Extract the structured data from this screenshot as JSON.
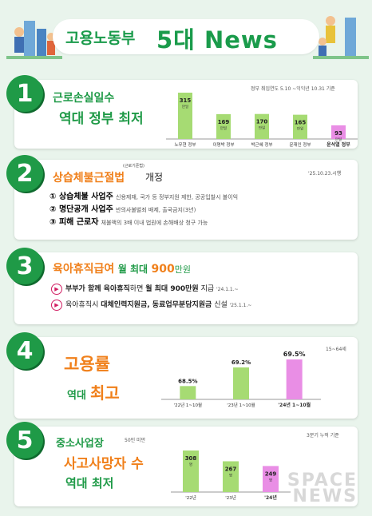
{
  "header": {
    "title_prefix": "고용노동부",
    "title_main": "5대 News"
  },
  "items": [
    {
      "num": "1",
      "title": "근로손실일수",
      "subtitle": "역대 정부 최저",
      "note": "정부 취임연도 5.10 ~익익년 10.31 기준",
      "chart_data": {
        "type": "bar",
        "categories": [
          "노무현 정부",
          "이명박 정부",
          "박근혜 정부",
          "문재인 정부",
          "윤석열 정부"
        ],
        "values": [
          315,
          169,
          170,
          165,
          93
        ],
        "unit": "만일",
        "highlight": 4
      }
    },
    {
      "num": "2",
      "title": "상습체불근절법",
      "title_small": "(근로기준법)",
      "title_tail": "개정",
      "date": "'25.10.23.시행",
      "lines": [
        {
          "label": "① 상습체불 사업주",
          "desc": "신용제재, 국가 등 정부지원 제한, 공공입찰시 불이익"
        },
        {
          "label": "② 명단공개 사업주",
          "desc": "반의사불벌죄 배제, 출국금지(3년)"
        },
        {
          "label": "③ 피해 근로자",
          "desc": "체불액의 3배 이내 법원에 손해배상 청구 가능"
        }
      ]
    },
    {
      "num": "3",
      "title_a": "육아휴직급여",
      "title_b": "월 최대",
      "title_c": "900",
      "title_d": "만원",
      "lines": [
        {
          "text_a": "부부가 함께 육아휴직",
          "text_b": "하면",
          "text_c": "월 최대 900만원",
          "text_d": "지급",
          "date": "'24.1.1.~"
        },
        {
          "text_a": "육아휴직시",
          "text_b": "대체인력지원금, 동료업무분담지원금",
          "text_c": "신설",
          "date": "'25.1.1.~"
        }
      ]
    },
    {
      "num": "4",
      "title": "고용률",
      "subtitle_a": "역대",
      "subtitle_b": "최고",
      "note": "15~64세",
      "chart_data": {
        "type": "bar",
        "categories": [
          "'22년 1~10월",
          "'23년 1~10월",
          "'24년 1~10월"
        ],
        "values": [
          68.5,
          69.2,
          69.5
        ],
        "labels": [
          "68.5%",
          "69.2%",
          "69.5%"
        ],
        "highlight": 2
      }
    },
    {
      "num": "5",
      "title": "중소사업장",
      "title_small": "50인 미만",
      "title_b": "사고사망자 수",
      "subtitle": "역대 최저",
      "note": "3분기 누적 기준",
      "chart_data": {
        "type": "bar",
        "categories": [
          "'22년",
          "'23년",
          "'24년"
        ],
        "values": [
          308,
          267,
          249
        ],
        "unit": "명",
        "highlight": 2
      }
    }
  ],
  "watermark": {
    "line1": "SPACE",
    "line2": "NEWS"
  }
}
